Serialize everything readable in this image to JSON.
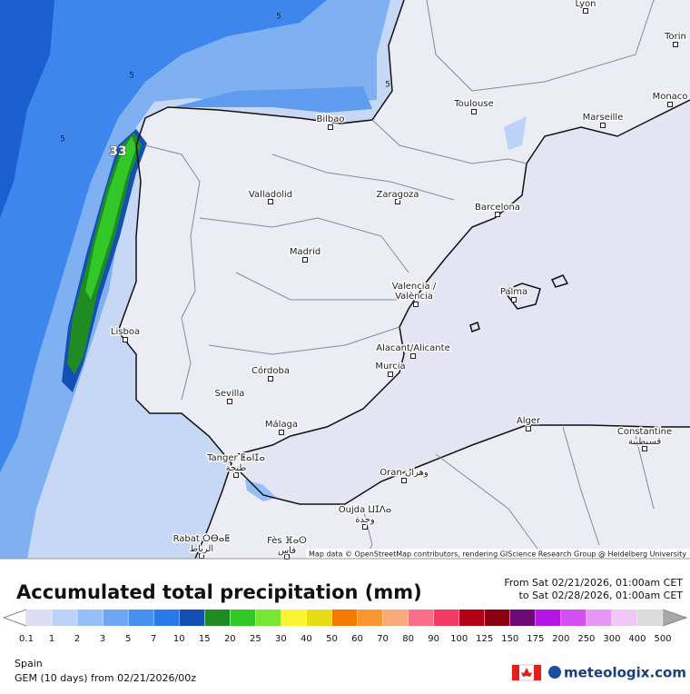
{
  "map": {
    "attribution": "Map data © OpenStreetMap contributors, rendering GIScience Research Group @ Heidelberg University",
    "contour_labels": [
      "5",
      "5",
      "5",
      "5",
      "33"
    ],
    "cities": [
      {
        "name": "Lyon"
      },
      {
        "name": "Torin"
      },
      {
        "name": "Monaco"
      },
      {
        "name": "Toulouse"
      },
      {
        "name": "Marseille"
      },
      {
        "name": "Bilbao"
      },
      {
        "name": "Valladolid"
      },
      {
        "name": "Zaragoza"
      },
      {
        "name": "Barcelona"
      },
      {
        "name": "Madrid"
      },
      {
        "name": "Valencia /",
        "line2": "València"
      },
      {
        "name": "Palma"
      },
      {
        "name": "Lisboa"
      },
      {
        "name": "Alacant/Alicante"
      },
      {
        "name": "Murcia"
      },
      {
        "name": "Córdoba"
      },
      {
        "name": "Sevilla"
      },
      {
        "name": "Málaga"
      },
      {
        "name": "Alger"
      },
      {
        "name": "Constantine",
        "line2": "قسنطينة"
      },
      {
        "name": "Tanger ⵟⴰⵏⵊⴰ",
        "line2": "طنجة"
      },
      {
        "name": "Oran وهران"
      },
      {
        "name": "Oujda ⵡⵊⴷⴰ",
        "line2": "وجدة"
      },
      {
        "name": "Rabat ⵔⴱⴰⵟ",
        "line2": "الرباط"
      },
      {
        "name": "Fès ⴼⴰⵙ",
        "line2": "فاس"
      }
    ]
  },
  "legend": {
    "title": "Accumulated total precipitation (mm)",
    "from": "From Sat 02/21/2026, 01:00am CET",
    "to": "to Sat 02/28/2026, 01:00am CET",
    "ticks": [
      0.1,
      1,
      2,
      3,
      5,
      7,
      10,
      15,
      20,
      25,
      30,
      40,
      50,
      60,
      70,
      80,
      90,
      100,
      125,
      150,
      175,
      200,
      250,
      300,
      400,
      500
    ],
    "colors": [
      "#dcdcf2",
      "#bcd2f8",
      "#96bef8",
      "#6ea6f4",
      "#4690f0",
      "#2a78ea",
      "#1450b4",
      "#1e8c23",
      "#32c828",
      "#78e632",
      "#faf532",
      "#e6dc14",
      "#f57800",
      "#fa9632",
      "#faaa78",
      "#fa6e8c",
      "#f03c64",
      "#b40014",
      "#8c0014",
      "#6e0a78",
      "#b414e6",
      "#d250f0",
      "#e696f5",
      "#f0c8f8",
      "#dcdcdc"
    ]
  },
  "footer": {
    "region": "Spain",
    "model": "GEM (10 days) from 02/21/2026/00z",
    "logo": "meteologix.com"
  }
}
